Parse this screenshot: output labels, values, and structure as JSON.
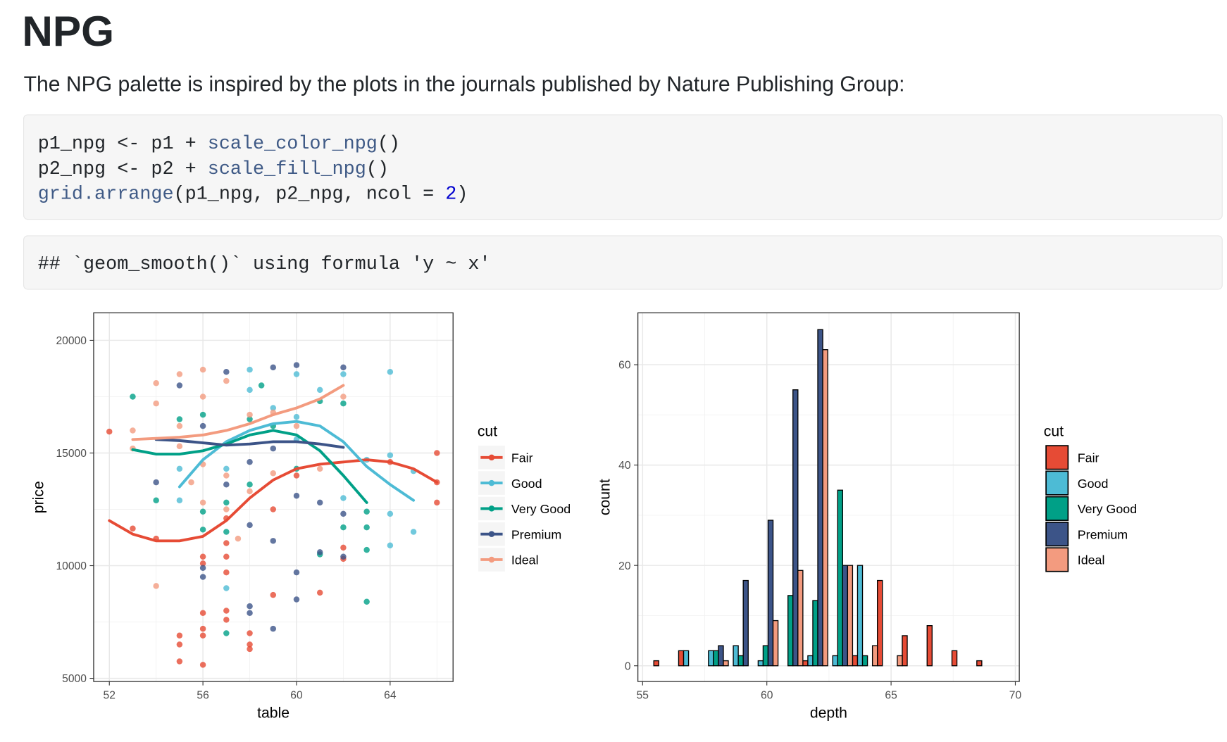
{
  "header": {
    "title": "NPG"
  },
  "intro": "The NPG palette is inspired by the plots in the journals published by Nature Publishing Group:",
  "code": {
    "lines": [
      [
        {
          "text": "p1_npg <- p1 + ",
          "kind": "plain"
        },
        {
          "text": "scale_color_npg",
          "kind": "fn"
        },
        {
          "text": "()",
          "kind": "plain"
        }
      ],
      [
        {
          "text": "p2_npg <- p2 + ",
          "kind": "plain"
        },
        {
          "text": "scale_fill_npg",
          "kind": "fn"
        },
        {
          "text": "()",
          "kind": "plain"
        }
      ],
      [
        {
          "text": "grid.arrange",
          "kind": "fn"
        },
        {
          "text": "(p1_npg, p2_npg, ncol = ",
          "kind": "plain"
        },
        {
          "text": "2",
          "kind": "num"
        },
        {
          "text": ")",
          "kind": "plain"
        }
      ]
    ]
  },
  "output": "## `geom_smooth()` using formula 'y ~ x'",
  "chart_data": [
    {
      "type": "scatter",
      "xlabel": "table",
      "ylabel": "price",
      "xlim": [
        51.33,
        66.69
      ],
      "ylim": [
        4860,
        21221
      ],
      "xticks": [
        52,
        56,
        60,
        64
      ],
      "yticks": [
        5000,
        10000,
        15000,
        20000
      ],
      "x_minor_grid": [
        54,
        58,
        62,
        66
      ],
      "y_minor_grid": [
        7500,
        12500,
        17500
      ],
      "grid": true,
      "legend": {
        "title": "cut",
        "position": "right"
      },
      "series": [
        {
          "name": "Fair",
          "color": "#E64B35",
          "x": [
            52,
            53,
            54,
            55,
            55,
            55,
            56,
            56,
            56,
            56,
            56,
            56,
            57,
            57,
            57,
            57,
            57,
            57,
            58,
            58,
            58,
            59,
            59,
            60,
            61,
            62,
            62,
            64,
            66,
            66,
            66
          ],
          "values": [
            15950,
            11650,
            11200,
            6900,
            6500,
            5750,
            5600,
            7900,
            7200,
            6900,
            10400,
            10100,
            11000,
            9700,
            10400,
            12100,
            8000,
            7600,
            7000,
            6500,
            6300,
            12500,
            8700,
            14000,
            8800,
            10800,
            10300,
            14600,
            15000,
            13700,
            12800
          ],
          "smooth_x": [
            52,
            53,
            54,
            55,
            56,
            57,
            58,
            59,
            60,
            61,
            62,
            63,
            64,
            65,
            66
          ],
          "smooth_values": [
            12000,
            11400,
            11100,
            11100,
            11300,
            12000,
            13000,
            13800,
            14300,
            14500,
            14600,
            14700,
            14600,
            14300,
            13700
          ]
        },
        {
          "name": "Good",
          "color": "#4DBBD5",
          "x": [
            55,
            55,
            57,
            57,
            58,
            58,
            59,
            60,
            60,
            61,
            62,
            62,
            63,
            64,
            64,
            64,
            64,
            65,
            65,
            60
          ],
          "values": [
            12900,
            14300,
            9000,
            14300,
            18700,
            17800,
            17000,
            16600,
            18500,
            17800,
            13000,
            18500,
            14700,
            18600,
            12300,
            10900,
            14900,
            11500,
            14200,
            15600
          ],
          "smooth_x": [
            55,
            56,
            57,
            58,
            59,
            60,
            61,
            62,
            63,
            64,
            65
          ],
          "smooth_values": [
            13500,
            14700,
            15500,
            16000,
            16300,
            16400,
            16200,
            15500,
            14400,
            13600,
            12900
          ]
        },
        {
          "name": "Very Good",
          "color": "#00A087",
          "x": [
            53,
            54,
            55,
            56,
            56,
            56,
            57,
            57,
            57,
            58,
            58,
            58.5,
            59,
            60,
            61,
            61,
            62,
            62,
            63,
            63,
            63,
            63
          ],
          "values": [
            17500,
            12900,
            16500,
            11600,
            12400,
            16700,
            11500,
            7000,
            12800,
            16500,
            13600,
            18000,
            16200,
            14300,
            17300,
            10500,
            17200,
            11700,
            12400,
            8400,
            11700,
            10700
          ],
          "smooth_x": [
            53,
            54,
            55,
            56,
            57,
            58,
            59,
            60,
            61,
            62,
            63
          ],
          "smooth_values": [
            15150,
            14950,
            14950,
            15100,
            15400,
            15800,
            16000,
            15800,
            15100,
            14000,
            12800
          ]
        },
        {
          "name": "Premium",
          "color": "#3C5488",
          "x": [
            54,
            55,
            56,
            56,
            56,
            57,
            57,
            58,
            58,
            58,
            58,
            59,
            59,
            59,
            60,
            60,
            60,
            61,
            61,
            62,
            62,
            62,
            60,
            59
          ],
          "values": [
            13700,
            18000,
            9900,
            9500,
            16200,
            13600,
            18600,
            8200,
            7900,
            14600,
            11800,
            7200,
            11100,
            18800,
            8500,
            9700,
            18900,
            12800,
            10600,
            12300,
            10400,
            18800,
            13100,
            15200
          ],
          "smooth_x": [
            54,
            55,
            56,
            57,
            58,
            59,
            60,
            61,
            62
          ],
          "smooth_values": [
            15600,
            15550,
            15450,
            15350,
            15400,
            15500,
            15500,
            15400,
            15250
          ]
        },
        {
          "name": "Ideal",
          "color": "#F39B7F",
          "x": [
            53,
            53,
            54,
            54,
            54,
            55,
            55,
            55,
            56,
            56,
            56,
            56,
            57,
            57,
            57,
            58,
            58,
            59,
            59,
            60,
            61,
            62,
            55.5,
            57.5
          ],
          "values": [
            16000,
            15200,
            9100,
            18100,
            17200,
            18500,
            16200,
            15300,
            18700,
            17500,
            14500,
            12800,
            18200,
            14000,
            12500,
            13300,
            16700,
            16800,
            14100,
            16200,
            14300,
            17500,
            13700,
            11200
          ],
          "smooth_x": [
            53,
            54,
            55,
            56,
            57,
            58,
            59,
            60,
            61,
            62
          ],
          "smooth_values": [
            15600,
            15650,
            15700,
            15800,
            16000,
            16300,
            16700,
            17000,
            17400,
            18000
          ]
        }
      ]
    },
    {
      "type": "histogram",
      "xlabel": "depth",
      "ylabel": "count",
      "xlim": [
        54.81,
        70.16
      ],
      "ylim": [
        -3.13,
        70.34
      ],
      "xticks": [
        55,
        60,
        65,
        70
      ],
      "yticks": [
        0,
        20,
        40,
        60
      ],
      "x_minor_grid": [
        57.5,
        62.5,
        67.5
      ],
      "y_minor_grid": [
        10,
        30,
        50
      ],
      "grid": true,
      "legend": {
        "title": "cut",
        "position": "right"
      },
      "bins": [
        55.45,
        56.45,
        57.45,
        58.45,
        59.45,
        60.45,
        61.45,
        62.45,
        63.45,
        64.45,
        65.45,
        66.45,
        67.45,
        68.45,
        69.45
      ],
      "series": [
        {
          "name": "Fair",
          "color": "#E64B35",
          "values": [
            1,
            3,
            0,
            0,
            0,
            0,
            1,
            0,
            2,
            17,
            6,
            8,
            3,
            1
          ]
        },
        {
          "name": "Good",
          "color": "#4DBBD5",
          "values": [
            0,
            3,
            3,
            4,
            1,
            0,
            2,
            2,
            20,
            0,
            0,
            0,
            0,
            0
          ]
        },
        {
          "name": "Very Good",
          "color": "#00A087",
          "values": [
            0,
            0,
            3,
            2,
            4,
            14,
            13,
            35,
            2,
            0,
            0,
            0,
            0,
            0
          ]
        },
        {
          "name": "Premium",
          "color": "#3C5488",
          "values": [
            0,
            0,
            4,
            17,
            29,
            55,
            67,
            20,
            0,
            0,
            0,
            0,
            0,
            0
          ]
        },
        {
          "name": "Ideal",
          "color": "#F39B7F",
          "values": [
            0,
            0,
            1,
            0,
            9,
            19,
            63,
            20,
            4,
            2,
            0,
            0,
            0,
            0
          ]
        }
      ]
    }
  ]
}
